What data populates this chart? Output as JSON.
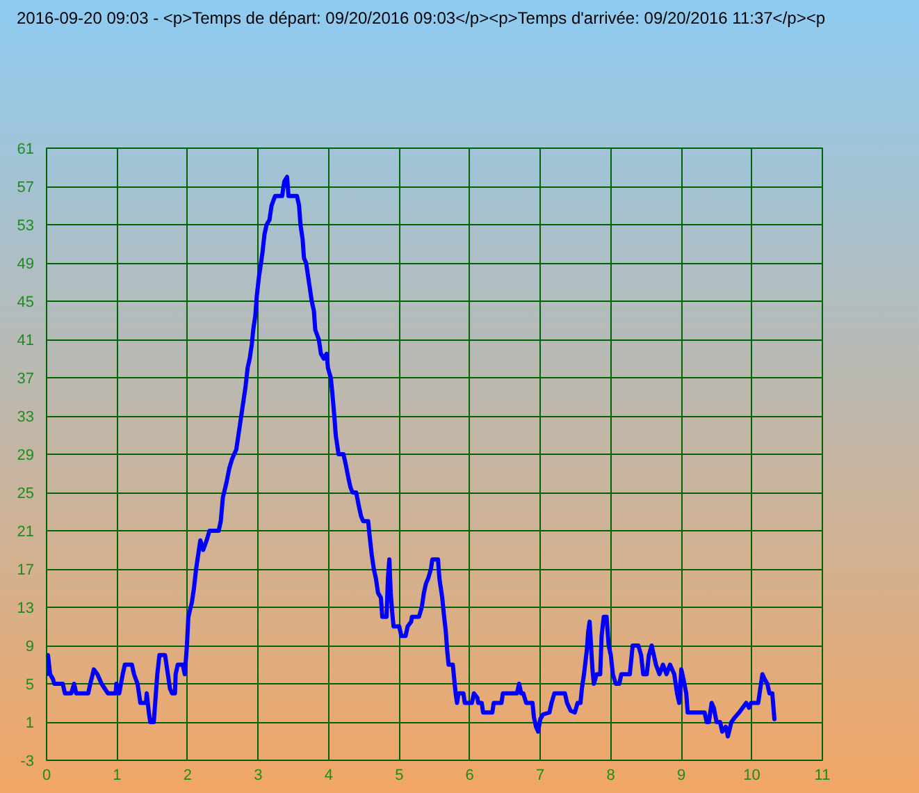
{
  "chart_data": {
    "type": "line",
    "title": "2016-09-20 09:03 - <p>Temps de départ: 09/20/2016 09:03</p><p>Temps d'arrivée: 09/20/2016 11:37</p><p",
    "x": [
      0,
      0.02,
      0.05,
      0.09,
      0.11,
      0.23,
      0.26,
      0.35,
      0.39,
      0.42,
      0.59,
      0.62,
      0.67,
      0.72,
      0.78,
      0.87,
      0.98,
      0.99,
      1.03,
      1.08,
      1.11,
      1.21,
      1.24,
      1.29,
      1.33,
      1.41,
      1.42,
      1.45,
      1.47,
      1.52,
      1.55,
      1.57,
      1.6,
      1.68,
      1.71,
      1.75,
      1.78,
      1.82,
      1.83,
      1.86,
      1.93,
      1.96,
      1.99,
      2.01,
      2.06,
      2.09,
      2.12,
      2.16,
      2.18,
      2.22,
      2.27,
      2.31,
      2.44,
      2.47,
      2.5,
      2.55,
      2.59,
      2.63,
      2.69,
      2.72,
      2.75,
      2.78,
      2.82,
      2.85,
      2.88,
      2.91,
      2.93,
      2.96,
      2.98,
      3.01,
      3.04,
      3.06,
      3.09,
      3.12,
      3.16,
      3.19,
      3.24,
      3.34,
      3.37,
      3.41,
      3.43,
      3.55,
      3.58,
      3.6,
      3.63,
      3.65,
      3.68,
      3.7,
      3.73,
      3.76,
      3.79,
      3.81,
      3.86,
      3.89,
      3.93,
      3.97,
      3.99,
      4.03,
      4.05,
      4.08,
      4.1,
      4.13,
      4.14,
      4.21,
      4.24,
      4.28,
      4.31,
      4.34,
      4.39,
      4.43,
      4.46,
      4.49,
      4.56,
      4.58,
      4.61,
      4.64,
      4.67,
      4.7,
      4.74,
      4.76,
      4.82,
      4.84,
      4.86,
      4.88,
      4.9,
      4.92,
      5.0,
      5.03,
      5.09,
      5.12,
      5.17,
      5.18,
      5.28,
      5.32,
      5.35,
      5.38,
      5.41,
      5.45,
      5.47,
      5.55,
      5.57,
      5.59,
      5.61,
      5.63,
      5.66,
      5.68,
      5.7,
      5.76,
      5.78,
      5.8,
      5.82,
      5.84,
      5.91,
      5.93,
      6.03,
      6.06,
      6.11,
      6.12,
      6.17,
      6.19,
      6.32,
      6.34,
      6.45,
      6.47,
      6.67,
      6.7,
      6.73,
      6.76,
      6.8,
      6.89,
      6.91,
      6.94,
      6.97,
      7.0,
      7.04,
      7.13,
      7.16,
      7.2,
      7.35,
      7.38,
      7.43,
      7.49,
      7.53,
      7.57,
      7.59,
      7.62,
      7.66,
      7.68,
      7.7,
      7.72,
      7.74,
      7.76,
      7.8,
      7.85,
      7.87,
      7.9,
      7.94,
      7.97,
      8.0,
      8.03,
      8.07,
      8.12,
      8.15,
      8.27,
      8.29,
      8.31,
      8.39,
      8.43,
      8.46,
      8.51,
      8.54,
      8.58,
      8.61,
      8.64,
      8.69,
      8.74,
      8.79,
      8.84,
      8.9,
      8.94,
      8.97,
      9.0,
      9.03,
      9.07,
      9.09,
      9.33,
      9.36,
      9.39,
      9.43,
      9.46,
      9.5,
      9.55,
      9.58,
      9.63,
      9.66,
      9.71,
      9.76,
      9.82,
      9.87,
      9.92,
      9.96,
      9.99,
      10.09,
      10.12,
      10.15,
      10.18,
      10.22,
      10.25,
      10.29,
      10.32
    ],
    "series": [
      {
        "color": "#0000ff",
        "values": [
          6,
          8,
          6,
          5.5,
          5,
          5,
          4,
          4,
          5,
          4,
          4,
          5,
          6.5,
          6,
          5,
          4,
          4,
          5,
          4,
          6,
          7,
          7,
          6,
          5,
          3,
          3,
          4,
          2,
          1,
          1,
          4,
          6,
          8,
          8,
          6.5,
          4.5,
          4,
          4,
          6,
          7,
          7,
          6,
          9,
          12,
          13.5,
          15,
          17,
          19,
          20,
          19,
          20,
          21,
          21,
          22,
          24.5,
          26,
          27.5,
          28.5,
          29.5,
          31,
          32.5,
          34,
          36,
          38,
          39,
          40.5,
          42,
          43.5,
          45.5,
          47.5,
          49,
          50,
          52,
          53,
          53.5,
          55,
          56,
          56,
          57.5,
          58,
          56,
          56,
          55,
          53,
          51.5,
          49.5,
          49,
          48,
          46.5,
          45,
          44,
          42,
          41,
          39.5,
          39,
          39.5,
          38,
          37,
          35.5,
          33,
          31,
          29.5,
          29,
          29,
          28,
          26.5,
          25.5,
          25,
          25,
          23.5,
          22.5,
          22,
          22,
          20.5,
          18.5,
          17,
          16,
          14.5,
          14,
          12,
          12,
          16,
          18,
          14.5,
          12.5,
          11,
          11,
          10,
          10,
          11,
          11.5,
          12,
          12,
          13,
          14.5,
          15.5,
          16,
          17,
          18,
          18,
          16,
          15,
          14,
          12.5,
          10.5,
          8.5,
          7,
          7,
          5.5,
          4,
          3,
          4,
          4,
          3,
          3,
          4,
          3.5,
          3,
          3,
          2,
          2,
          3,
          3,
          4,
          4,
          5,
          4,
          4,
          3,
          3,
          1.5,
          0.5,
          0,
          1.3,
          1.8,
          2,
          3,
          4,
          4,
          3,
          2.2,
          2,
          3,
          3,
          4.5,
          6,
          8.5,
          10.5,
          11.5,
          9,
          6.5,
          5,
          6,
          6,
          10,
          12,
          12,
          9,
          8,
          6,
          5,
          5,
          6,
          6,
          7.5,
          9,
          9,
          8,
          6,
          6,
          8,
          9,
          8,
          7,
          6,
          7,
          6,
          7,
          6,
          4,
          3,
          6.5,
          5.5,
          4,
          2,
          2,
          1,
          1,
          3,
          2.5,
          1,
          1,
          0,
          0.5,
          -0.5,
          1,
          1.5,
          2,
          2.5,
          3,
          2.5,
          3,
          3,
          4.5,
          6,
          5.5,
          5,
          4,
          4,
          1.3
        ]
      }
    ],
    "xlim": [
      0,
      11
    ],
    "ylim": [
      -3,
      61
    ],
    "xticks": [
      0,
      1,
      2,
      3,
      4,
      5,
      6,
      7,
      8,
      9,
      10,
      11
    ],
    "yticks": [
      -3,
      1,
      5,
      9,
      13,
      17,
      21,
      25,
      29,
      33,
      37,
      41,
      45,
      49,
      53,
      57,
      61
    ],
    "grid": true,
    "line_style": "solid"
  }
}
